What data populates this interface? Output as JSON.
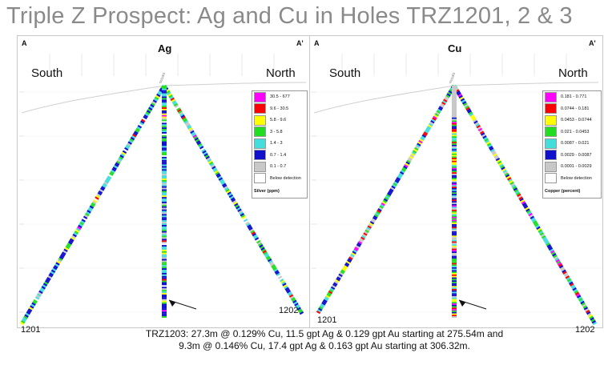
{
  "title": "Triple Z Prospect: Ag and Cu in Holes TRZ1201, 2 & 3",
  "panels": [
    {
      "element": "Ag",
      "section_left": "A",
      "section_right": "A'",
      "south": "South",
      "north": "North",
      "hole_left": "1201",
      "hole_right": "1202",
      "legend_title": "Silver (ppm)",
      "legend": [
        {
          "label": "30.5 - 677",
          "color": "#ff00ff"
        },
        {
          "label": "9.6 - 30.5",
          "color": "#ff0000"
        },
        {
          "label": "5.8 - 9.6",
          "color": "#ffff00"
        },
        {
          "label": "3 - 5.8",
          "color": "#22dd22"
        },
        {
          "label": "1.4 - 3",
          "color": "#44dddd"
        },
        {
          "label": "0.7 - 1.4",
          "color": "#1010cc"
        },
        {
          "label": "0.1 - 0.7",
          "color": "#c8c8c8"
        },
        {
          "label": "Below detection",
          "color": "#ffffff"
        }
      ]
    },
    {
      "element": "Cu",
      "section_left": "A",
      "section_right": "A'",
      "south": "South",
      "north": "North",
      "hole_left": "1201",
      "hole_right": "1202",
      "legend_title": "Copper (percent)",
      "legend": [
        {
          "label": "0.181 - 0.771",
          "color": "#ff00ff"
        },
        {
          "label": "0.0744 - 0.181",
          "color": "#ff0000"
        },
        {
          "label": "0.0453 - 0.0744",
          "color": "#ffff00"
        },
        {
          "label": "0.021 - 0.0453",
          "color": "#22dd22"
        },
        {
          "label": "0.0087 - 0.021",
          "color": "#44dddd"
        },
        {
          "label": "0.0029 - 0.0087",
          "color": "#1010cc"
        },
        {
          "label": "0.0001 - 0.0029",
          "color": "#c8c8c8"
        },
        {
          "label": "Below detection",
          "color": "#ffffff"
        }
      ]
    }
  ],
  "caption": {
    "line1": "TRZ1203: 27.3m @ 0.129% Cu, 11.5 gpt Ag & 0.129 gpt Au starting at 275.54m and",
    "line2": "9.3m @ 0.146% Cu, 17.4 gpt Ag & 0.163 gpt Au starting at 306.32m."
  }
}
